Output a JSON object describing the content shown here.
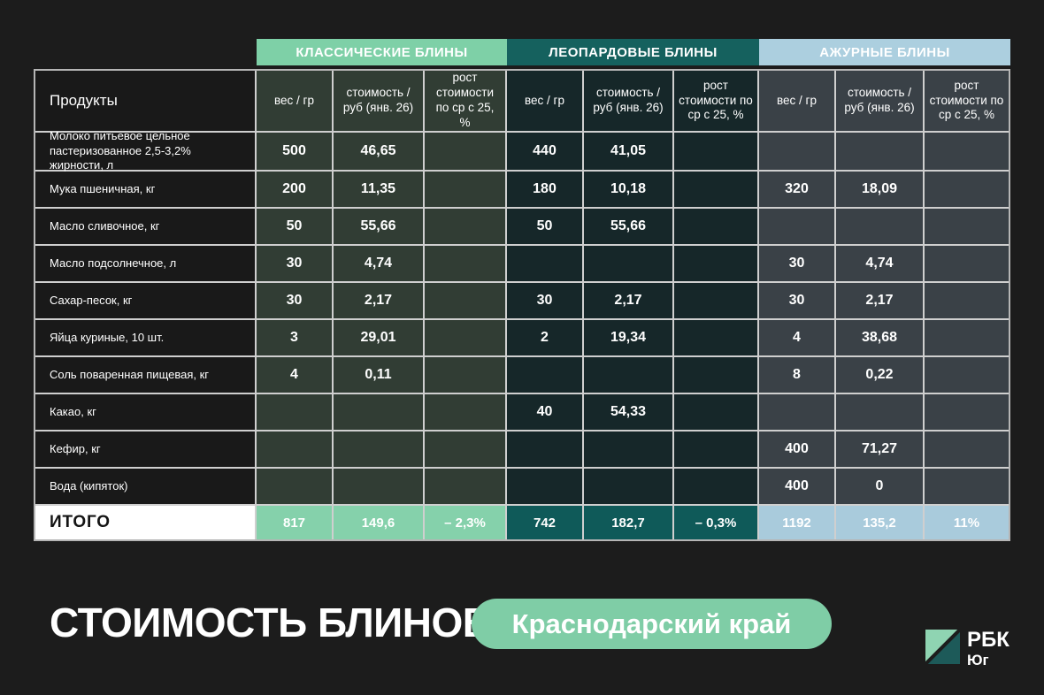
{
  "page": {
    "background": "#1c1c1c",
    "grid_line_color": "#cfcfcf"
  },
  "header_groups": [
    {
      "label": "КЛАССИЧЕСКИЕ БЛИНЫ",
      "strip_bg": "#7ed0a7",
      "strip_text": "#ffffff",
      "cell_bg": "#313d34",
      "total_bg": "#85d1ab"
    },
    {
      "label": "ЛЕОПАРДОВЫЕ БЛИНЫ",
      "strip_bg": "#15615e",
      "strip_text": "#ffffff",
      "cell_bg": "#162729",
      "total_bg": "#0f5a59"
    },
    {
      "label": "АЖУРНЫЕ БЛИНЫ",
      "strip_bg": "#accfdf",
      "strip_text": "#ffffff",
      "cell_bg": "#3a4147",
      "total_bg": "#a9cbdc"
    }
  ],
  "table": {
    "products_header": "Продукты",
    "subheaders": [
      "вес / гр",
      "стоимость / руб (янв. 26)",
      "рост стоимости по ср с 25, %"
    ],
    "rows": [
      {
        "product": "Молоко питьевое цельное пастеризованное 2,5-3,2% жирности, л",
        "values": [
          "500",
          "46,65",
          "",
          "440",
          "41,05",
          "",
          "",
          "",
          ""
        ]
      },
      {
        "product": "Мука пшеничная, кг",
        "values": [
          "200",
          "11,35",
          "",
          "180",
          "10,18",
          "",
          "320",
          "18,09",
          ""
        ]
      },
      {
        "product": "Масло сливочное, кг",
        "values": [
          "50",
          "55,66",
          "",
          "50",
          "55,66",
          "",
          "",
          "",
          ""
        ]
      },
      {
        "product": "Масло подсолнечное, л",
        "values": [
          "30",
          "4,74",
          "",
          "",
          "",
          "",
          "30",
          "4,74",
          ""
        ]
      },
      {
        "product": "Сахар-песок, кг",
        "values": [
          "30",
          "2,17",
          "",
          "30",
          "2,17",
          "",
          "30",
          "2,17",
          ""
        ]
      },
      {
        "product": "Яйца куриные, 10 шт.",
        "values": [
          "3",
          "29,01",
          "",
          "2",
          "19,34",
          "",
          "4",
          "38,68",
          ""
        ]
      },
      {
        "product": "Соль поваренная пищевая, кг",
        "values": [
          "4",
          "0,11",
          "",
          "",
          "",
          "",
          "8",
          "0,22",
          ""
        ]
      },
      {
        "product": "Какао, кг",
        "values": [
          "",
          "",
          "",
          "40",
          "54,33",
          "",
          "",
          "",
          ""
        ]
      },
      {
        "product": "Кефир, кг",
        "values": [
          "",
          "",
          "",
          "",
          "",
          "",
          "400",
          "71,27",
          ""
        ]
      },
      {
        "product": "Вода (кипяток)",
        "values": [
          "",
          "",
          "",
          "",
          "",
          "",
          "400",
          "0",
          ""
        ]
      }
    ],
    "total_label": "ИТОГО",
    "total_values": [
      "817",
      "149,6",
      "– 2,3%",
      "742",
      "182,7",
      "– 0,3%",
      "1192",
      "135,2",
      "11%"
    ]
  },
  "footer": {
    "title": "СТОИМОСТЬ БЛИНОВ",
    "badge": "Краснодарский край",
    "badge_bg": "#7fcda6",
    "logo_line1": "РБК",
    "logo_line2": "Юг",
    "logo_green": "#8fd4b2",
    "logo_teal": "#1d5a59"
  },
  "chart_data": {
    "type": "table",
    "title": "СТОИМОСТЬ БЛИНОВ",
    "region": "Краснодарский край",
    "row_header": "Продукты",
    "groups": [
      "КЛАССИЧЕСКИЕ БЛИНЫ",
      "ЛЕОПАРДОВЫЕ БЛИНЫ",
      "АЖУРНЫЕ БЛИНЫ"
    ],
    "columns_per_group": [
      "вес / гр",
      "стоимость / руб (янв. 26)",
      "рост стоимости по ср с 25, %"
    ],
    "products": [
      "Молоко питьевое цельное пастеризованное 2,5-3,2% жирности, л",
      "Мука пшеничная, кг",
      "Масло сливочное, кг",
      "Масло подсолнечное, л",
      "Сахар-песок, кг",
      "Яйца куриные, 10 шт.",
      "Соль поваренная пищевая, кг",
      "Какао, кг",
      "Кефир, кг",
      "Вода (кипяток)"
    ],
    "series": [
      {
        "name": "КЛАССИЧЕСКИЕ БЛИНЫ",
        "weight_g": [
          500,
          200,
          50,
          30,
          30,
          3,
          4,
          null,
          null,
          null
        ],
        "cost_rub": [
          46.65,
          11.35,
          55.66,
          4.74,
          2.17,
          29.01,
          0.11,
          null,
          null,
          null
        ],
        "total": {
          "weight_g": 817,
          "cost_rub": 149.6,
          "growth_vs_25_pct": -2.3
        }
      },
      {
        "name": "ЛЕОПАРДОВЫЕ БЛИНЫ",
        "weight_g": [
          440,
          180,
          50,
          null,
          30,
          2,
          null,
          40,
          null,
          null
        ],
        "cost_rub": [
          41.05,
          10.18,
          55.66,
          null,
          2.17,
          19.34,
          null,
          54.33,
          null,
          null
        ],
        "total": {
          "weight_g": 742,
          "cost_rub": 182.7,
          "growth_vs_25_pct": -0.3
        }
      },
      {
        "name": "АЖУРНЫЕ БЛИНЫ",
        "weight_g": [
          null,
          320,
          null,
          30,
          30,
          4,
          8,
          null,
          400,
          400
        ],
        "cost_rub": [
          null,
          18.09,
          null,
          4.74,
          2.17,
          38.68,
          0.22,
          null,
          71.27,
          0
        ],
        "total": {
          "weight_g": 1192,
          "cost_rub": 135.2,
          "growth_vs_25_pct": 11
        }
      }
    ]
  }
}
